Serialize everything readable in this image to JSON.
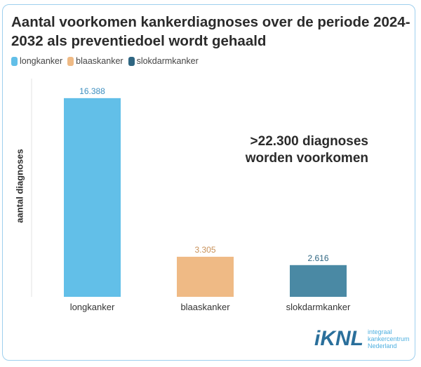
{
  "chart_data": {
    "type": "bar",
    "title": "Aantal voorkomen kankerdiagnoses over de periode 2024-2032 als preventiedoel wordt gehaald",
    "ylabel": "aantal diagnoses",
    "xlabel": "",
    "categories": [
      "longkanker",
      "blaaskanker",
      "slokdarmkanker"
    ],
    "values": [
      16388,
      3305,
      2616
    ],
    "data_labels": [
      "16.388",
      "3.305",
      "2.616"
    ],
    "colors": [
      "#62bfe8",
      "#efba85",
      "#4a89a4"
    ],
    "label_colors": [
      "#3e8fc0",
      "#c9925a",
      "#2f6682"
    ],
    "ylim": [
      0,
      18000
    ],
    "grid": false,
    "legend": {
      "position": "top-left",
      "entries": [
        "longkanker",
        "blaaskanker",
        "slokdarmkanker"
      ]
    },
    "annotation": [
      ">22.300 diagnoses",
      "worden voorkomen"
    ]
  },
  "logo": {
    "mark": "iKNL",
    "text": [
      "integraal",
      "kankercentrum",
      "Nederland"
    ]
  }
}
